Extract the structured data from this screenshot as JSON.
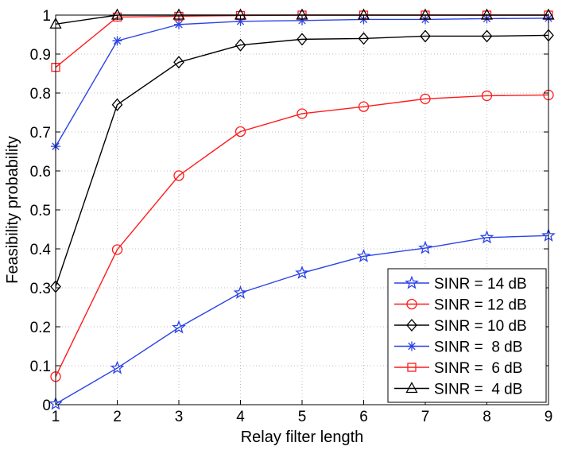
{
  "chart_data": {
    "type": "line",
    "xlabel": "Relay filter length",
    "ylabel": "Feasibility probability",
    "xlim": [
      1,
      9
    ],
    "ylim": [
      0,
      1
    ],
    "xticks": [
      "1",
      "2",
      "3",
      "4",
      "5",
      "6",
      "7",
      "8",
      "9"
    ],
    "yticks": [
      "0",
      "0.1",
      "0.2",
      "0.3",
      "0.4",
      "0.5",
      "0.6",
      "0.7",
      "0.8",
      "0.9",
      "1"
    ],
    "grid": true,
    "legend_position": "bottom-right",
    "x": [
      1,
      2,
      3,
      4,
      5,
      6,
      7,
      8,
      9
    ],
    "series": [
      {
        "name": "SINR = 14 dB",
        "color": "#2b43e6",
        "marker": "star",
        "values": [
          0.002,
          0.094,
          0.198,
          0.287,
          0.338,
          0.381,
          0.402,
          0.429,
          0.434
        ]
      },
      {
        "name": "SINR = 12 dB",
        "color": "#ff1a1a",
        "marker": "circle",
        "values": [
          0.072,
          0.398,
          0.588,
          0.701,
          0.747,
          0.765,
          0.785,
          0.793,
          0.795
        ]
      },
      {
        "name": "SINR = 10 dB",
        "color": "#000000",
        "marker": "diamond",
        "values": [
          0.303,
          0.77,
          0.879,
          0.923,
          0.938,
          0.94,
          0.946,
          0.946,
          0.948
        ]
      },
      {
        "name": "SINR =  8 dB",
        "color": "#2b43e6",
        "marker": "asterisk",
        "values": [
          0.663,
          0.934,
          0.976,
          0.984,
          0.986,
          0.989,
          0.989,
          0.991,
          0.992
        ]
      },
      {
        "name": "SINR =  6 dB",
        "color": "#ff1a1a",
        "marker": "square",
        "values": [
          0.866,
          0.995,
          0.997,
          0.999,
          1.0,
          1.0,
          1.0,
          1.0,
          1.0
        ]
      },
      {
        "name": "SINR =  4 dB",
        "color": "#000000",
        "marker": "triangle",
        "values": [
          0.977,
          1.0,
          1.0,
          1.0,
          1.0,
          1.0,
          1.0,
          1.0,
          1.0
        ]
      }
    ]
  }
}
